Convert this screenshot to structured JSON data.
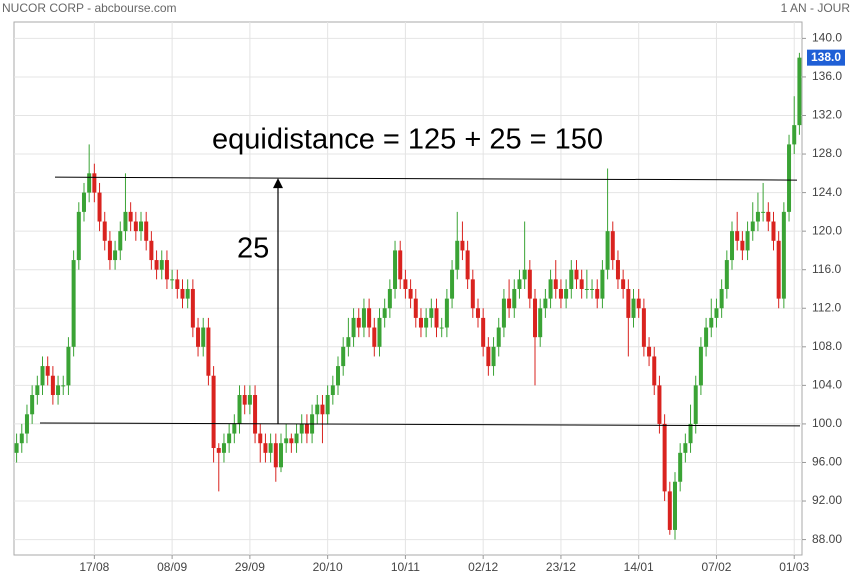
{
  "chart_data": {
    "type": "candlestick",
    "title": "NUCOR CORP - abcbourse.com",
    "period": "1 AN - JOUR",
    "annotations": [
      {
        "text": "equidistance = 125 + 25 = 150"
      },
      {
        "text": "25"
      }
    ],
    "hlines": [
      {
        "y": [
          125.6,
          125.3
        ]
      },
      {
        "y": [
          100.1,
          99.8
        ]
      }
    ],
    "arrow": {
      "y": [
        100,
        125.5
      ]
    },
    "last_price": {
      "value": 138,
      "label": "138.0"
    },
    "up_color": "#3aa335",
    "down_color": "#d9231f",
    "ylim": [
      86.4,
      141.7
    ],
    "yticks": [
      {
        "value": 88,
        "label": "88.00"
      },
      {
        "value": 92,
        "label": "92.00"
      },
      {
        "value": 96,
        "label": "96.00"
      },
      {
        "value": 100,
        "label": "100.0"
      },
      {
        "value": 104,
        "label": "104.0"
      },
      {
        "value": 108,
        "label": "108.0"
      },
      {
        "value": 112,
        "label": "112.0"
      },
      {
        "value": 116,
        "label": "116.0"
      },
      {
        "value": 120,
        "label": "120.0"
      },
      {
        "value": 124,
        "label": "124.0"
      },
      {
        "value": 128,
        "label": "128.0"
      },
      {
        "value": 132,
        "label": "132.0"
      },
      {
        "value": 136,
        "label": "136.0"
      },
      {
        "value": 140,
        "label": "140.0"
      }
    ],
    "grid": true,
    "categories": [
      null,
      null,
      null,
      null,
      null,
      null,
      null,
      null,
      null,
      null,
      null,
      null,
      null,
      null,
      null,
      "17/08",
      null,
      null,
      null,
      null,
      null,
      null,
      null,
      null,
      null,
      null,
      null,
      null,
      null,
      null,
      "08/09",
      null,
      null,
      null,
      null,
      null,
      null,
      null,
      null,
      null,
      null,
      null,
      null,
      null,
      null,
      "29/09",
      null,
      null,
      null,
      null,
      null,
      null,
      null,
      null,
      null,
      null,
      null,
      null,
      null,
      null,
      "20/10",
      null,
      null,
      null,
      null,
      null,
      null,
      null,
      null,
      null,
      null,
      null,
      null,
      null,
      null,
      "10/11",
      null,
      null,
      null,
      null,
      null,
      null,
      null,
      null,
      null,
      null,
      null,
      null,
      null,
      null,
      "02/12",
      null,
      null,
      null,
      null,
      null,
      null,
      null,
      null,
      null,
      null,
      null,
      null,
      null,
      null,
      "23/12",
      null,
      null,
      null,
      null,
      null,
      null,
      null,
      null,
      null,
      null,
      null,
      null,
      null,
      null,
      "14/01",
      null,
      null,
      null,
      null,
      null,
      null,
      null,
      null,
      null,
      null,
      null,
      null,
      null,
      null,
      "07/02",
      null,
      null,
      null,
      null,
      null,
      null,
      null,
      null,
      null,
      null,
      null,
      null,
      null,
      null,
      "01/03",
      null
    ],
    "ohlc": [
      [
        97,
        99,
        96,
        98
      ],
      [
        98,
        100,
        97,
        99
      ],
      [
        99,
        102,
        98,
        101
      ],
      [
        101,
        104,
        100,
        103
      ],
      [
        103,
        105,
        102,
        104
      ],
      [
        104,
        107,
        103,
        106
      ],
      [
        106,
        107,
        104,
        105
      ],
      [
        105,
        106,
        102,
        103
      ],
      [
        103,
        105,
        102,
        104
      ],
      [
        104,
        105,
        103,
        104
      ],
      [
        104,
        109,
        103,
        108
      ],
      [
        108,
        118,
        107,
        117
      ],
      [
        117,
        123,
        116,
        122
      ],
      [
        122,
        125,
        121,
        124
      ],
      [
        124,
        129,
        123,
        126
      ],
      [
        126,
        127,
        123,
        124
      ],
      [
        124,
        125,
        120,
        121
      ],
      [
        121,
        122,
        118,
        119
      ],
      [
        119,
        120,
        116,
        117
      ],
      [
        117,
        119,
        116,
        118
      ],
      [
        118,
        121,
        117,
        120
      ],
      [
        120,
        126,
        119,
        122
      ],
      [
        122,
        123,
        120,
        121
      ],
      [
        121,
        122,
        119,
        120
      ],
      [
        120,
        122,
        119,
        121
      ],
      [
        121,
        122,
        118,
        119
      ],
      [
        119,
        120,
        116,
        117
      ],
      [
        117,
        118,
        115,
        116
      ],
      [
        116,
        118,
        115,
        117
      ],
      [
        117,
        118,
        114,
        115
      ],
      [
        115,
        116,
        114,
        115
      ],
      [
        115,
        116,
        113,
        114
      ],
      [
        114,
        115,
        112,
        113
      ],
      [
        113,
        115,
        112,
        114
      ],
      [
        114,
        115,
        109,
        110
      ],
      [
        110,
        111,
        107,
        108
      ],
      [
        108,
        111,
        107,
        110
      ],
      [
        110,
        111,
        104,
        105
      ],
      [
        105,
        106,
        96,
        97.5
      ],
      [
        97.5,
        98,
        93,
        97
      ],
      [
        97,
        99,
        96,
        98
      ],
      [
        98,
        100,
        97,
        99
      ],
      [
        99,
        101,
        98,
        100
      ],
      [
        100,
        104,
        99,
        103
      ],
      [
        103,
        104,
        101,
        102
      ],
      [
        102,
        104,
        101,
        103
      ],
      [
        103,
        104,
        98,
        99
      ],
      [
        99,
        100,
        96,
        98
      ],
      [
        98,
        99,
        96,
        97
      ],
      [
        97,
        99,
        96,
        98
      ],
      [
        98,
        99,
        94,
        95.5
      ],
      [
        95.5,
        99,
        95,
        98
      ],
      [
        98,
        100,
        97,
        98.5
      ],
      [
        98.5,
        99,
        97,
        98
      ],
      [
        98,
        100,
        97,
        99
      ],
      [
        99,
        101,
        98,
        100
      ],
      [
        100,
        101,
        98,
        99
      ],
      [
        99,
        102,
        98,
        101
      ],
      [
        101,
        103,
        100,
        102
      ],
      [
        102,
        103,
        98,
        101
      ],
      [
        101,
        104,
        100,
        103
      ],
      [
        103,
        105,
        102,
        104
      ],
      [
        104,
        107,
        103,
        106
      ],
      [
        106,
        109,
        105,
        108
      ],
      [
        108,
        111,
        107,
        109
      ],
      [
        109,
        112,
        108,
        111
      ],
      [
        111,
        112,
        109,
        110
      ],
      [
        110,
        113,
        109,
        112
      ],
      [
        112,
        113,
        109,
        110
      ],
      [
        110,
        111,
        107,
        108
      ],
      [
        108,
        112,
        107,
        111
      ],
      [
        111,
        113,
        110,
        112
      ],
      [
        112,
        115,
        111,
        114
      ],
      [
        114,
        119,
        113,
        118
      ],
      [
        118,
        119,
        114,
        115
      ],
      [
        115,
        116,
        113,
        114
      ],
      [
        114,
        115,
        112,
        113
      ],
      [
        113,
        114,
        110,
        111
      ],
      [
        111,
        112,
        109,
        110
      ],
      [
        110,
        112,
        109,
        111
      ],
      [
        111,
        113,
        110,
        112
      ],
      [
        112,
        113,
        109,
        110
      ],
      [
        110,
        111,
        109,
        110
      ],
      [
        110,
        114,
        109,
        113
      ],
      [
        113,
        117,
        112,
        116
      ],
      [
        116,
        122,
        115,
        119
      ],
      [
        119,
        121,
        117,
        118
      ],
      [
        118,
        119,
        114,
        115
      ],
      [
        115,
        116,
        111,
        112
      ],
      [
        112,
        113,
        110,
        111
      ],
      [
        111,
        112,
        107,
        108
      ],
      [
        108,
        109,
        105,
        106
      ],
      [
        106,
        109,
        105,
        108
      ],
      [
        108,
        111,
        107,
        110
      ],
      [
        110,
        114,
        109,
        113
      ],
      [
        113,
        115,
        111,
        112
      ],
      [
        112,
        115,
        111,
        114
      ],
      [
        114,
        116,
        113,
        115
      ],
      [
        115,
        121,
        114,
        116
      ],
      [
        116,
        117,
        112,
        113
      ],
      [
        113,
        114,
        104,
        109
      ],
      [
        109,
        113,
        108,
        112
      ],
      [
        112,
        114,
        111,
        113
      ],
      [
        113,
        116,
        112,
        115
      ],
      [
        115,
        117,
        113,
        114
      ],
      [
        114,
        115,
        112,
        113
      ],
      [
        113,
        115,
        112,
        114
      ],
      [
        114,
        117,
        113,
        116
      ],
      [
        116,
        117,
        114,
        115
      ],
      [
        115,
        116,
        113,
        114
      ],
      [
        114,
        116,
        113,
        114
      ],
      [
        114,
        115,
        113,
        114
      ],
      [
        114,
        115,
        112,
        113
      ],
      [
        113,
        117,
        112,
        116
      ],
      [
        116,
        126.5,
        115,
        120
      ],
      [
        120,
        121,
        116,
        117
      ],
      [
        117,
        118,
        114,
        115
      ],
      [
        115,
        116,
        113,
        114
      ],
      [
        114,
        115,
        107,
        111
      ],
      [
        111,
        114,
        110,
        113
      ],
      [
        113,
        114,
        111,
        112
      ],
      [
        112,
        113,
        107,
        108
      ],
      [
        108,
        109,
        106,
        107
      ],
      [
        107,
        108,
        103,
        104
      ],
      [
        104,
        105,
        99,
        100
      ],
      [
        100,
        101,
        92,
        93
      ],
      [
        93,
        94,
        88.5,
        89
      ],
      [
        89,
        95,
        88,
        94
      ],
      [
        94,
        98,
        93,
        97
      ],
      [
        97,
        99,
        96,
        98
      ],
      [
        98,
        102,
        97,
        100
      ],
      [
        100,
        105,
        99,
        104
      ],
      [
        104,
        109,
        103,
        108
      ],
      [
        108,
        111,
        107,
        110
      ],
      [
        110,
        113,
        109,
        111
      ],
      [
        111,
        113,
        110,
        112
      ],
      [
        112,
        115,
        111,
        114
      ],
      [
        114,
        118,
        113,
        117
      ],
      [
        117,
        121,
        116,
        120
      ],
      [
        120,
        122,
        118,
        119
      ],
      [
        119,
        120,
        117,
        118
      ],
      [
        118,
        121,
        117,
        120
      ],
      [
        120,
        123,
        119,
        121
      ],
      [
        121,
        124,
        120,
        122
      ],
      [
        122,
        125,
        121,
        122
      ],
      [
        122,
        123,
        120,
        121
      ],
      [
        121,
        122,
        118,
        119
      ],
      [
        119,
        120,
        112,
        113
      ],
      [
        113,
        123,
        112,
        122
      ],
      [
        122,
        130,
        121,
        129
      ],
      [
        129,
        134,
        128,
        131
      ],
      [
        131,
        138.5,
        130,
        138
      ]
    ]
  }
}
